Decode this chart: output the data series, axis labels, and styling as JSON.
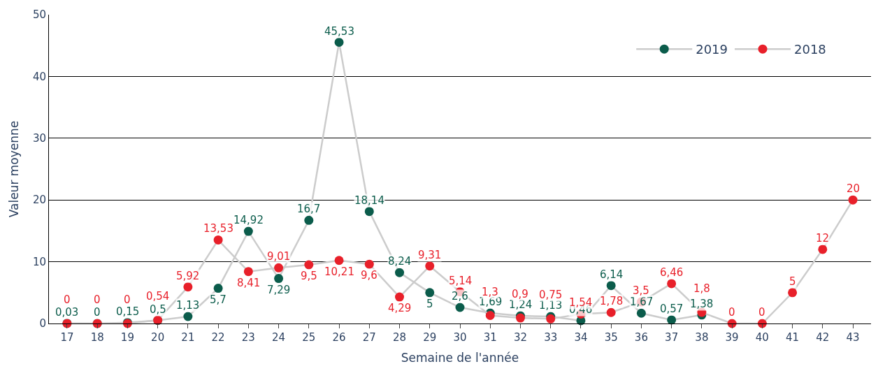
{
  "chart_data": {
    "type": "line",
    "xlabel": "Semaine de l'année",
    "ylabel": "Valeur moyenne",
    "categories": [
      "17",
      "18",
      "19",
      "20",
      "21",
      "22",
      "23",
      "24",
      "25",
      "26",
      "27",
      "28",
      "29",
      "30",
      "31",
      "32",
      "33",
      "34",
      "35",
      "36",
      "37",
      "38",
      "39",
      "40",
      "41",
      "42",
      "43"
    ],
    "series": [
      {
        "name": "2019",
        "color": "#0b5c4b",
        "values": [
          0.03,
          0,
          0.15,
          0.5,
          1.13,
          5.7,
          14.92,
          7.29,
          16.7,
          45.53,
          18.14,
          8.24,
          5,
          2.6,
          1.69,
          1.24,
          1.13,
          0.46,
          6.14,
          1.67,
          0.57,
          1.38,
          null,
          null,
          null,
          null,
          null
        ],
        "value_labels": [
          "0,03",
          "0",
          "0,15",
          "0,5",
          "1,13",
          "5,7",
          "14,92",
          "7,29",
          "16,7",
          "45,53",
          "18,14",
          "8,24",
          "5",
          "2,6",
          "1,69",
          "1,24",
          "1,13",
          "0,46",
          "6,14",
          "1,67",
          "0,57",
          "1,38",
          null,
          null,
          null,
          null,
          null
        ]
      },
      {
        "name": "2018",
        "color": "#e8202a",
        "values": [
          0,
          0,
          0,
          0.54,
          5.92,
          13.53,
          8.41,
          9.01,
          9.5,
          10.21,
          9.6,
          4.29,
          9.31,
          5.14,
          1.3,
          0.9,
          0.75,
          1.54,
          1.78,
          3.5,
          6.46,
          1.8,
          0,
          0,
          5,
          12,
          20
        ],
        "value_labels": [
          "0",
          "0",
          "0",
          "0,54",
          "5,92",
          "13,53",
          "8,41",
          "9,01",
          "9,5",
          "10,21",
          "9,6",
          "4,29",
          "9,31",
          "5,14",
          "1,3",
          "0,9",
          "0,75",
          "1,54",
          "1,78",
          "3,5",
          "6,46",
          "1,8",
          "0",
          "0",
          "5",
          "12",
          "20"
        ]
      }
    ],
    "ylim": [
      0,
      50
    ],
    "yticks": [
      0,
      10,
      20,
      30,
      40,
      50
    ],
    "grid": "y",
    "legend": "top right",
    "marker": "circle",
    "line_style": "solid"
  }
}
